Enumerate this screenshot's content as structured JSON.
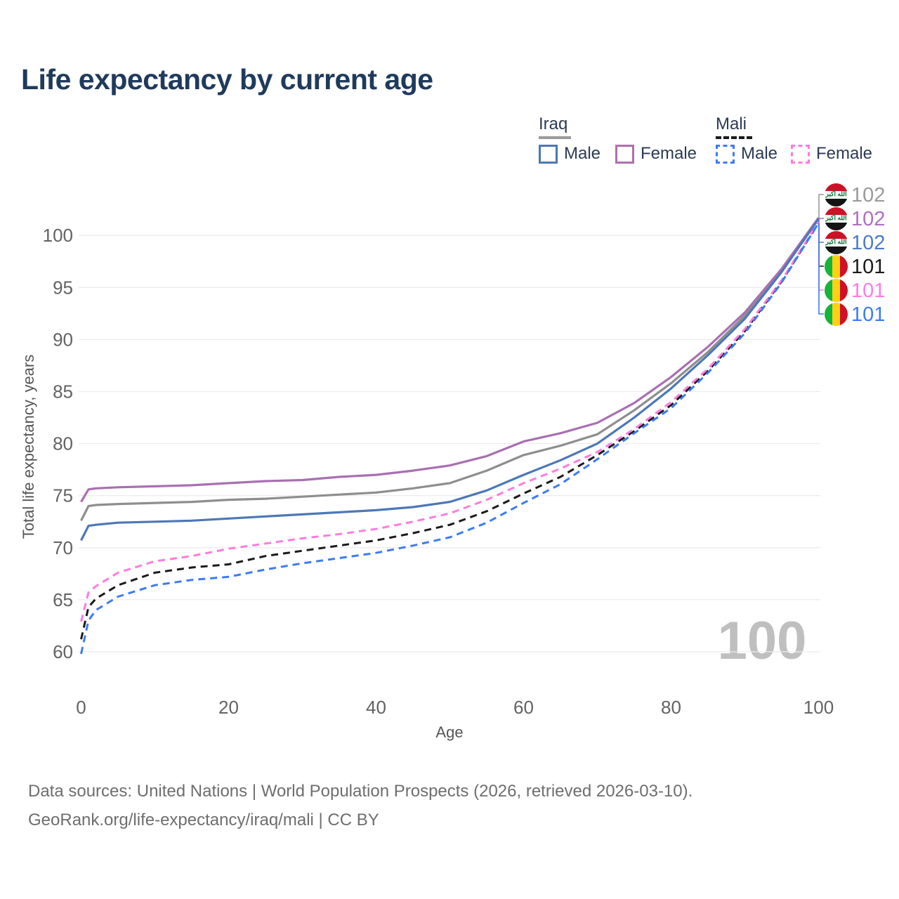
{
  "title": "Life expectancy by current age",
  "watermark": "100",
  "legend": {
    "groups": [
      {
        "country": "Iraq",
        "line_style": "solid",
        "underline_color": "#9A9A9A",
        "items": [
          {
            "label": "Male",
            "color": "#4C78B5",
            "dashed": false
          },
          {
            "label": "Female",
            "color": "#B06FAE",
            "dashed": false
          }
        ]
      },
      {
        "country": "Mali",
        "line_style": "dashed",
        "underline_color": "#1a1a1a",
        "items": [
          {
            "label": "Male",
            "color": "#3D7BF5",
            "dashed": true
          },
          {
            "label": "Female",
            "color": "#FF7BDE",
            "dashed": true
          }
        ]
      }
    ]
  },
  "footer": {
    "line1": "Data sources: United Nations | World Population Prospects (2026, retrieved 2026-03-10).",
    "line2": "GeoRank.org/life-expectancy/iraq/mali | CC BY"
  },
  "chart_data": {
    "type": "line",
    "title": "Life expectancy by current age",
    "xlabel": "Age",
    "ylabel": "Total life expectancy, years",
    "xlim": [
      0,
      100
    ],
    "ylim": [
      59,
      102.5
    ],
    "xticks": [
      0,
      20,
      40,
      60,
      80,
      100
    ],
    "yticks": [
      60,
      65,
      70,
      75,
      80,
      85,
      90,
      95,
      100
    ],
    "grid": "horizontal",
    "legend_position": "top-right",
    "x": [
      0,
      1,
      2,
      5,
      10,
      15,
      20,
      25,
      30,
      35,
      40,
      45,
      50,
      55,
      60,
      65,
      70,
      75,
      80,
      85,
      90,
      95,
      100
    ],
    "series": [
      {
        "id": "iraq-both",
        "name": "Iraq (both sexes)",
        "country": "Iraq",
        "color": "#8E8E8E",
        "dashed": false,
        "values": [
          72.6,
          74.0,
          74.1,
          74.2,
          74.3,
          74.4,
          74.6,
          74.7,
          74.9,
          75.1,
          75.3,
          75.7,
          76.2,
          77.4,
          78.9,
          79.8,
          80.9,
          83.2,
          85.8,
          88.8,
          92.3,
          96.7,
          101.6
        ],
        "end_label": {
          "text": "102",
          "color": "#9A9A9A",
          "flag": "iraq"
        }
      },
      {
        "id": "iraq-female",
        "name": "Iraq Female",
        "country": "Iraq",
        "color": "#A96FB2",
        "dashed": false,
        "values": [
          74.4,
          75.6,
          75.7,
          75.8,
          75.9,
          76.0,
          76.2,
          76.4,
          76.5,
          76.8,
          77.0,
          77.4,
          77.9,
          78.8,
          80.2,
          81.0,
          82.0,
          83.9,
          86.4,
          89.3,
          92.6,
          96.8,
          101.7
        ],
        "end_label": {
          "text": "102",
          "color": "#B06EC4",
          "flag": "iraq"
        }
      },
      {
        "id": "iraq-male",
        "name": "Iraq Male",
        "country": "Iraq",
        "color": "#4C78B5",
        "dashed": false,
        "values": [
          70.7,
          72.1,
          72.2,
          72.4,
          72.5,
          72.6,
          72.8,
          73.0,
          73.2,
          73.4,
          73.6,
          73.9,
          74.4,
          75.5,
          77.0,
          78.4,
          80.0,
          82.5,
          85.3,
          88.5,
          92.0,
          96.5,
          101.6
        ],
        "end_label": {
          "text": "102",
          "color": "#4C7BC9",
          "flag": "iraq"
        }
      },
      {
        "id": "mali-both",
        "name": "Mali (both sexes)",
        "country": "Mali",
        "color": "#1a1a1a",
        "dashed": true,
        "values": [
          61.2,
          64.3,
          65.1,
          66.4,
          67.6,
          68.1,
          68.4,
          69.2,
          69.7,
          70.2,
          70.7,
          71.4,
          72.2,
          73.5,
          75.2,
          76.8,
          78.9,
          81.2,
          83.7,
          87.0,
          90.8,
          95.6,
          101.2
        ],
        "end_label": {
          "text": "101",
          "color": "#1a1a1a",
          "flag": "mali"
        }
      },
      {
        "id": "mali-female",
        "name": "Mali Female",
        "country": "Mali",
        "color": "#FF7BDE",
        "dashed": true,
        "values": [
          62.9,
          65.7,
          66.3,
          67.6,
          68.7,
          69.2,
          69.9,
          70.4,
          70.9,
          71.3,
          71.8,
          72.5,
          73.3,
          74.6,
          76.2,
          77.6,
          79.2,
          81.4,
          84.0,
          87.2,
          91.0,
          95.7,
          101.3
        ],
        "end_label": {
          "text": "101",
          "color": "#FF7BE5",
          "flag": "mali"
        }
      },
      {
        "id": "mali-male",
        "name": "Mali Male",
        "country": "Mali",
        "color": "#3D7BF5",
        "dashed": true,
        "values": [
          59.8,
          63.0,
          64.0,
          65.3,
          66.4,
          66.9,
          67.2,
          67.9,
          68.5,
          69.0,
          69.5,
          70.2,
          71.0,
          72.4,
          74.3,
          76.1,
          78.5,
          81.0,
          83.4,
          86.8,
          90.6,
          95.5,
          101.2
        ],
        "end_label": {
          "text": "101",
          "color": "#3D7BF5",
          "flag": "mali"
        }
      }
    ]
  }
}
